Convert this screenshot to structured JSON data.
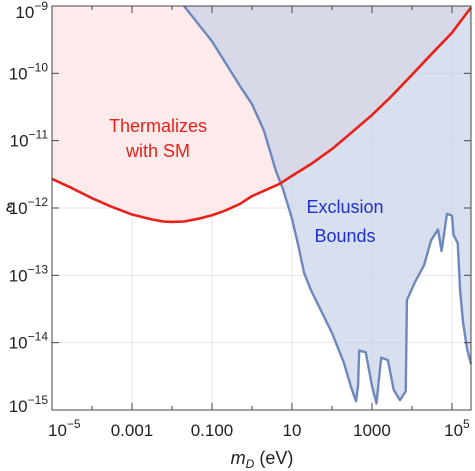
{
  "chart_data": {
    "type": "area",
    "title": "",
    "xlabel": {
      "main": "m",
      "sub": "D",
      "unit": " (eV)"
    },
    "ylabel": "ε",
    "xscale": "log",
    "yscale": "log",
    "xlim": [
      1e-05,
      300000
    ],
    "ylim": [
      1e-15,
      1e-09
    ],
    "x_ticks": [
      {
        "value": 1e-05,
        "base": "10",
        "exp": "−5"
      },
      {
        "value": 0.001,
        "text": "0.001"
      },
      {
        "value": 0.1,
        "text": "0.100"
      },
      {
        "value": 10,
        "text": "10"
      },
      {
        "value": 1000,
        "text": "1000"
      },
      {
        "value": 100000,
        "base": "10",
        "exp": "5"
      }
    ],
    "y_ticks": [
      {
        "value": 1e-15,
        "base": "10",
        "exp": "−15"
      },
      {
        "value": 1e-14,
        "base": "10",
        "exp": "−14"
      },
      {
        "value": 1e-13,
        "base": "10",
        "exp": "−13"
      },
      {
        "value": 1e-12,
        "base": "10",
        "exp": "−12"
      },
      {
        "value": 1e-11,
        "base": "10",
        "exp": "−11"
      },
      {
        "value": 1e-10,
        "base": "10",
        "exp": "−10"
      },
      {
        "value": 1e-09,
        "base": "10",
        "exp": "−9"
      }
    ],
    "grid": true,
    "annotations": {
      "thermal": [
        "Thermalizes",
        "with SM"
      ],
      "exclusion": [
        "Exclusion",
        "Bounds"
      ]
    },
    "colors": {
      "thermal_line": "#e8211b",
      "thermal_fill": "#fde8e8",
      "exclusion_line": "#6f88bb",
      "exclusion_fill": "#c9d3e8",
      "annotation_red": "#e8211b",
      "annotation_blue": "#1f2fd0"
    },
    "series": [
      {
        "id": "thermalization",
        "style": "line-with-fill-above",
        "points": [
          [
            1e-05,
            2.7e-12
          ],
          [
            3e-05,
            2e-12
          ],
          [
            0.0001,
            1.4e-12
          ],
          [
            0.0003,
            1.05e-12
          ],
          [
            0.001,
            8e-13
          ],
          [
            0.003,
            6.8e-13
          ],
          [
            0.006,
            6.3e-13
          ],
          [
            0.01,
            6.2e-13
          ],
          [
            0.02,
            6.3e-13
          ],
          [
            0.05,
            7e-13
          ],
          [
            0.1,
            7.8e-13
          ],
          [
            0.2,
            9e-13
          ],
          [
            0.5,
            1.15e-12
          ],
          [
            1,
            1.5e-12
          ],
          [
            2,
            1.8e-12
          ],
          [
            5,
            2.3e-12
          ],
          [
            10,
            3e-12
          ],
          [
            30,
            4.5e-12
          ],
          [
            100,
            7.5e-12
          ],
          [
            300,
            1.3e-11
          ],
          [
            1000,
            2.4e-11
          ],
          [
            3000,
            4.5e-11
          ],
          [
            10000,
            9.5e-11
          ],
          [
            30000,
            1.9e-10
          ],
          [
            100000,
            4e-10
          ],
          [
            300000,
            9.5e-10
          ]
        ]
      },
      {
        "id": "exclusion",
        "style": "filled-region-outline",
        "points": [
          [
            0.02,
            1e-09
          ],
          [
            0.1,
            3e-10
          ],
          [
            0.5,
            6.5e-11
          ],
          [
            1,
            3.5e-11
          ],
          [
            2,
            1.4e-11
          ],
          [
            4,
            3.5e-12
          ],
          [
            6,
            1.9e-12
          ],
          [
            10,
            7e-13
          ],
          [
            15,
            2.5e-13
          ],
          [
            20,
            1.1e-13
          ],
          [
            30,
            6e-14
          ],
          [
            60,
            2.6e-14
          ],
          [
            100,
            1.4e-14
          ],
          [
            200,
            5e-15
          ],
          [
            300,
            2.2e-15
          ],
          [
            400,
            1.35e-15
          ],
          [
            450,
            2.3e-15
          ],
          [
            480,
            7.6e-15
          ],
          [
            700,
            7.2e-15
          ],
          [
            1000,
            2.3e-15
          ],
          [
            1300,
            1.25e-15
          ],
          [
            1700,
            6e-15
          ],
          [
            2500,
            5.5e-15
          ],
          [
            3500,
            2e-15
          ],
          [
            5000,
            1.4e-15
          ],
          [
            7000,
            1.9e-15
          ],
          [
            7500,
            4.3e-14
          ],
          [
            12000,
            8e-14
          ],
          [
            20000,
            1.4e-13
          ],
          [
            30000,
            3.3e-13
          ],
          [
            45000,
            4.8e-13
          ],
          [
            55000,
            2.3e-13
          ],
          [
            65000,
            4.5e-13
          ],
          [
            75000,
            8.2e-13
          ],
          [
            100000,
            7.7e-13
          ],
          [
            110000,
            4e-13
          ],
          [
            140000,
            3e-13
          ],
          [
            160000,
            6e-14
          ],
          [
            190000,
            2e-14
          ],
          [
            240000,
            8e-15
          ],
          [
            300000,
            4.8e-15
          ]
        ]
      }
    ]
  }
}
